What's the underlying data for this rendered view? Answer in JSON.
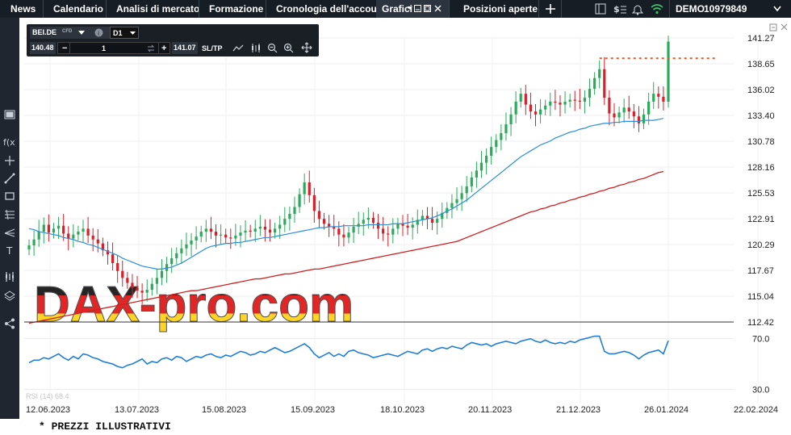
{
  "nav": {
    "tabs": [
      {
        "label": "News"
      },
      {
        "label": "Calendario"
      },
      {
        "label": "Analisi di mercato"
      },
      {
        "label": "Formazione"
      },
      {
        "label": "Cronologia dell'account"
      },
      {
        "label": "Grafici",
        "active": true
      },
      {
        "label": "Posizioni aperte"
      }
    ],
    "account_mode": "DEMO",
    "account_number": "10979849",
    "icons": [
      "add-tab-icon",
      "layout-icon",
      "currency-settings-icon",
      "notifications-icon",
      "wifi-signal-icon",
      "account-dropdown-icon"
    ]
  },
  "left_toolbar_icons": [
    "panel-toggle-icon",
    "function-icon",
    "crosshair-icon",
    "line-draw-icon",
    "rectangle-icon",
    "fibonacci-icon",
    "pitchfork-icon",
    "text-tool-icon",
    "indicator-icon",
    "layers-icon",
    "share-icon"
  ],
  "trade_toolbar": {
    "symbol": "BEI.DE",
    "instrument_type": "CFD",
    "timeframe": "D1",
    "sell_price": "140.48",
    "quantity": "1",
    "buy_price": "141.07",
    "sltp_label": "SL/TP"
  },
  "watermark": {
    "text": "DAX-pro.com",
    "colors": [
      "#000000",
      "#dd0000",
      "#ffce00"
    ]
  },
  "chart_data": {
    "type": "candlestick",
    "symbol": "BEI.DE",
    "timeframe": "D1",
    "price_axis": [
      "141.27",
      "138.65",
      "136.02",
      "133.40",
      "130.78",
      "128.16",
      "125.53",
      "122.91",
      "120.29",
      "117.67",
      "115.04",
      "112.42"
    ],
    "ylim": [
      112.42,
      141.27
    ],
    "date_axis": [
      "12.06.2023",
      "13.07.2023",
      "15.08.2023",
      "15.09.2023",
      "18.10.2023",
      "20.11.2023",
      "21.12.2023",
      "26.01.2024",
      "22.02.2024"
    ],
    "current_price_marker": 139.2,
    "close_series": [
      120.2,
      120.8,
      121.6,
      122.3,
      121.5,
      121.9,
      122.2,
      121.4,
      120.9,
      121.3,
      121.6,
      121.9,
      121.2,
      120.8,
      120.4,
      119.7,
      119.3,
      118.4,
      117.6,
      116.9,
      116.4,
      115.9,
      115.6,
      115.4,
      115.7,
      116.3,
      116.9,
      117.6,
      118.3,
      118.9,
      119.4,
      119.9,
      120.3,
      120.7,
      121.1,
      121.6,
      121.9,
      121.6,
      121.2,
      121.3,
      121.0,
      120.9,
      121.2,
      121.5,
      121.7,
      121.6,
      121.9,
      122.1,
      121.8,
      121.5,
      121.9,
      122.3,
      122.9,
      123.4,
      124.1,
      125.4,
      126.6,
      125.3,
      123.7,
      122.9,
      122.4,
      122.1,
      121.9,
      121.3,
      121.0,
      121.5,
      122.1,
      122.4,
      122.8,
      123.0,
      122.5,
      121.9,
      121.4,
      121.3,
      121.9,
      122.4,
      122.2,
      122.0,
      122.3,
      122.8,
      123.2,
      122.9,
      122.5,
      122.9,
      123.5,
      124.0,
      124.5,
      124.9,
      125.5,
      126.2,
      127.1,
      127.8,
      128.6,
      129.3,
      130.2,
      130.9,
      131.6,
      132.5,
      133.5,
      134.8,
      135.6,
      134.5,
      133.8,
      133.5,
      134.0,
      134.4,
      134.8,
      134.7,
      134.5,
      134.8,
      135.0,
      134.9,
      134.8,
      135.2,
      136.1,
      137.2,
      138.1,
      135.2,
      133.6,
      133.2,
      133.7,
      134.2,
      133.8,
      133.3,
      132.6,
      133.5,
      134.8,
      135.6,
      135.3,
      134.8,
      140.9
    ],
    "ma_fast": [
      121.9,
      121.8,
      121.6,
      121.5,
      121.4,
      121.3,
      121.2,
      121.0,
      120.9,
      120.8,
      120.6,
      120.5,
      120.3,
      120.2,
      120.0,
      119.8,
      119.6,
      119.4,
      119.2,
      118.9,
      118.7,
      118.5,
      118.3,
      118.1,
      118.0,
      117.9,
      117.8,
      117.8,
      117.9,
      118.0,
      118.2,
      118.4,
      118.7,
      119.0,
      119.3,
      119.6,
      119.9,
      120.1,
      120.2,
      120.3,
      120.4,
      120.4,
      120.5,
      120.5,
      120.6,
      120.7,
      120.8,
      120.9,
      121.0,
      121.0,
      121.1,
      121.2,
      121.3,
      121.4,
      121.5,
      121.6,
      121.7,
      121.8,
      121.9,
      122.0,
      122.0,
      122.1,
      122.1,
      122.1,
      122.2,
      122.2,
      122.2,
      122.2,
      122.2,
      122.3,
      122.3,
      122.3,
      122.3,
      122.3,
      122.4,
      122.4,
      122.4,
      122.5,
      122.6,
      122.7,
      122.8,
      122.9,
      123.0,
      123.2,
      123.4,
      123.7,
      123.9,
      124.2,
      124.5,
      124.8,
      125.2,
      125.6,
      126.0,
      126.4,
      126.8,
      127.2,
      127.6,
      128.0,
      128.4,
      128.8,
      129.2,
      129.5,
      129.8,
      130.1,
      130.4,
      130.6,
      130.8,
      131.1,
      131.3,
      131.5,
      131.7,
      131.8,
      132.0,
      132.1,
      132.3,
      132.4,
      132.5,
      132.6,
      132.6,
      132.7,
      132.7,
      132.8,
      132.8,
      132.8,
      132.8,
      132.9,
      132.9,
      132.9,
      133.0,
      133.1
    ],
    "ma_slow": [
      112.3,
      112.4,
      112.5,
      112.6,
      112.7,
      112.8,
      112.9,
      113.0,
      113.1,
      113.2,
      113.3,
      113.4,
      113.5,
      113.6,
      113.7,
      113.8,
      113.9,
      114.0,
      114.1,
      114.2,
      114.3,
      114.4,
      114.5,
      114.6,
      114.7,
      114.8,
      114.9,
      115.0,
      115.1,
      115.2,
      115.3,
      115.4,
      115.5,
      115.6,
      115.6,
      115.7,
      115.8,
      115.9,
      116.0,
      116.1,
      116.2,
      116.3,
      116.4,
      116.5,
      116.6,
      116.7,
      116.8,
      116.8,
      116.9,
      117.0,
      117.1,
      117.2,
      117.3,
      117.3,
      117.4,
      117.5,
      117.6,
      117.7,
      117.8,
      117.8,
      117.9,
      118.0,
      118.1,
      118.2,
      118.3,
      118.4,
      118.5,
      118.6,
      118.7,
      118.8,
      118.9,
      119.0,
      119.1,
      119.2,
      119.3,
      119.4,
      119.5,
      119.6,
      119.7,
      119.8,
      119.9,
      120.0,
      120.1,
      120.2,
      120.3,
      120.4,
      120.5,
      120.6,
      120.8,
      121.0,
      121.2,
      121.4,
      121.6,
      121.8,
      122.0,
      122.2,
      122.4,
      122.6,
      122.8,
      123.0,
      123.2,
      123.4,
      123.6,
      123.7,
      123.9,
      124.0,
      124.2,
      124.3,
      124.5,
      124.6,
      124.8,
      124.9,
      125.1,
      125.2,
      125.4,
      125.5,
      125.7,
      125.8,
      126.0,
      126.1,
      126.3,
      126.4,
      126.6,
      126.7,
      126.9,
      127.0,
      127.2,
      127.4,
      127.6,
      127.7
    ],
    "series": [
      {
        "name": "BEI.DE",
        "role": "price candles",
        "up_color": "#2aaa5a",
        "down_color": "#d8202a"
      },
      {
        "role": "moving-average-fast",
        "color": "#2a8fd8"
      },
      {
        "role": "moving-average-slow",
        "color": "#cc2222"
      }
    ],
    "oscillator": {
      "label": "RSI (14) 68.4",
      "axis": [
        "70.0",
        "30.0"
      ],
      "ylim": [
        20,
        80
      ],
      "color": "#1f7fd6",
      "values": [
        51,
        53,
        53,
        55,
        54,
        56,
        58,
        55,
        53,
        56,
        54,
        58,
        57,
        55,
        54,
        52,
        51,
        50,
        48,
        47,
        49,
        50,
        52,
        54,
        50,
        52,
        51,
        54,
        55,
        53,
        56,
        55,
        52,
        54,
        56,
        55,
        57,
        58,
        56,
        55,
        57,
        56,
        58,
        60,
        59,
        57,
        58,
        60,
        59,
        61,
        63,
        61,
        59,
        60,
        62,
        64,
        66,
        63,
        58,
        55,
        57,
        59,
        56,
        58,
        56,
        60,
        61,
        59,
        58,
        57,
        55,
        56,
        57,
        58,
        57,
        56,
        58,
        60,
        59,
        58,
        61,
        62,
        60,
        62,
        63,
        62,
        64,
        63,
        62,
        65,
        67,
        66,
        65,
        66,
        64,
        66,
        67,
        68,
        67,
        66,
        68,
        69,
        70,
        68,
        67,
        69,
        67,
        66,
        67,
        66,
        68,
        67,
        69,
        70,
        71,
        72,
        72,
        60,
        58,
        58,
        59,
        60,
        59,
        57,
        54,
        57,
        59,
        60,
        61,
        58,
        68.4
      ]
    }
  }
}
